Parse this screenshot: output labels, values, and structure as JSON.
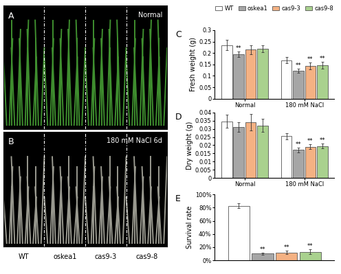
{
  "photos": [
    {
      "panel": "A",
      "condition": "Normal"
    },
    {
      "panel": "B",
      "condition": "180 mM NaCl 6d"
    }
  ],
  "photo_genotypes": [
    "WT",
    "oskea1",
    "cas9-3",
    "cas9-8"
  ],
  "chart_data": [
    {
      "type": "bar",
      "panel": "C",
      "y_label": "Fresh weight (g)",
      "categories": [
        "Normal",
        "180 mM NaCl"
      ],
      "ylim": [
        0,
        0.3
      ],
      "yticks": [
        0,
        0.05,
        0.1,
        0.15,
        0.2,
        0.25,
        0.3
      ],
      "legend": "upper center",
      "series": [
        {
          "name": "WT",
          "color": "#ffffff",
          "values": [
            0.235,
            0.168
          ],
          "errors": [
            0.022,
            0.014
          ],
          "significance": [
            null,
            null
          ]
        },
        {
          "name": "oskea1",
          "color": "#a6a6a6",
          "values": [
            0.193,
            0.122
          ],
          "errors": [
            0.012,
            0.01
          ],
          "significance": [
            "**",
            "**"
          ]
        },
        {
          "name": "cas9-3",
          "color": "#f4b183",
          "values": [
            0.215,
            0.143
          ],
          "errors": [
            0.02,
            0.015
          ],
          "significance": [
            null,
            "**"
          ]
        },
        {
          "name": "cas9-8",
          "color": "#a9d18e",
          "values": [
            0.217,
            0.145
          ],
          "errors": [
            0.015,
            0.015
          ],
          "significance": [
            null,
            "**"
          ]
        }
      ]
    },
    {
      "type": "bar",
      "panel": "D",
      "y_label": "Dry weight (g)",
      "categories": [
        "Normal",
        "180 mM NaCl"
      ],
      "ylim": [
        0,
        0.04
      ],
      "yticks": [
        0,
        0.005,
        0.01,
        0.015,
        0.02,
        0.025,
        0.03,
        0.035,
        0.04
      ],
      "series": [
        {
          "name": "WT",
          "color": "#ffffff",
          "values": [
            0.0345,
            0.0255
          ],
          "errors": [
            0.004,
            0.002
          ],
          "significance": [
            null,
            null
          ]
        },
        {
          "name": "oskea1",
          "color": "#a6a6a6",
          "values": [
            0.031,
            0.0172
          ],
          "errors": [
            0.003,
            0.0015
          ],
          "significance": [
            null,
            "**"
          ]
        },
        {
          "name": "cas9-3",
          "color": "#f4b183",
          "values": [
            0.034,
            0.019
          ],
          "errors": [
            0.005,
            0.0015
          ],
          "significance": [
            null,
            "**"
          ]
        },
        {
          "name": "cas9-8",
          "color": "#a9d18e",
          "values": [
            0.032,
            0.0195
          ],
          "errors": [
            0.004,
            0.0015
          ],
          "significance": [
            null,
            "**"
          ]
        }
      ]
    },
    {
      "type": "bar",
      "panel": "E",
      "y_label": "Survival rate",
      "categories": [
        null
      ],
      "ylim": [
        0,
        100
      ],
      "yticks": [
        {
          "value": 0,
          "label": "0%"
        },
        {
          "value": 20,
          "label": "20%"
        },
        {
          "value": 40,
          "label": "40%"
        },
        {
          "value": 60,
          "label": "60%"
        },
        {
          "value": 80,
          "label": "80%"
        },
        {
          "value": 100,
          "label": "100%"
        }
      ],
      "series": [
        {
          "name": "WT",
          "color": "#ffffff",
          "values": [
            83
          ],
          "errors": [
            4
          ],
          "significance": [
            null
          ]
        },
        {
          "name": "oskea1",
          "color": "#a6a6a6",
          "values": [
            10
          ],
          "errors": [
            2
          ],
          "significance": [
            "**"
          ]
        },
        {
          "name": "cas9-3",
          "color": "#f4b183",
          "values": [
            12
          ],
          "errors": [
            2.5
          ],
          "significance": [
            "**"
          ]
        },
        {
          "name": "cas9-8",
          "color": "#a9d18e",
          "values": [
            13
          ],
          "errors": [
            4
          ],
          "significance": [
            "**"
          ]
        }
      ]
    }
  ]
}
